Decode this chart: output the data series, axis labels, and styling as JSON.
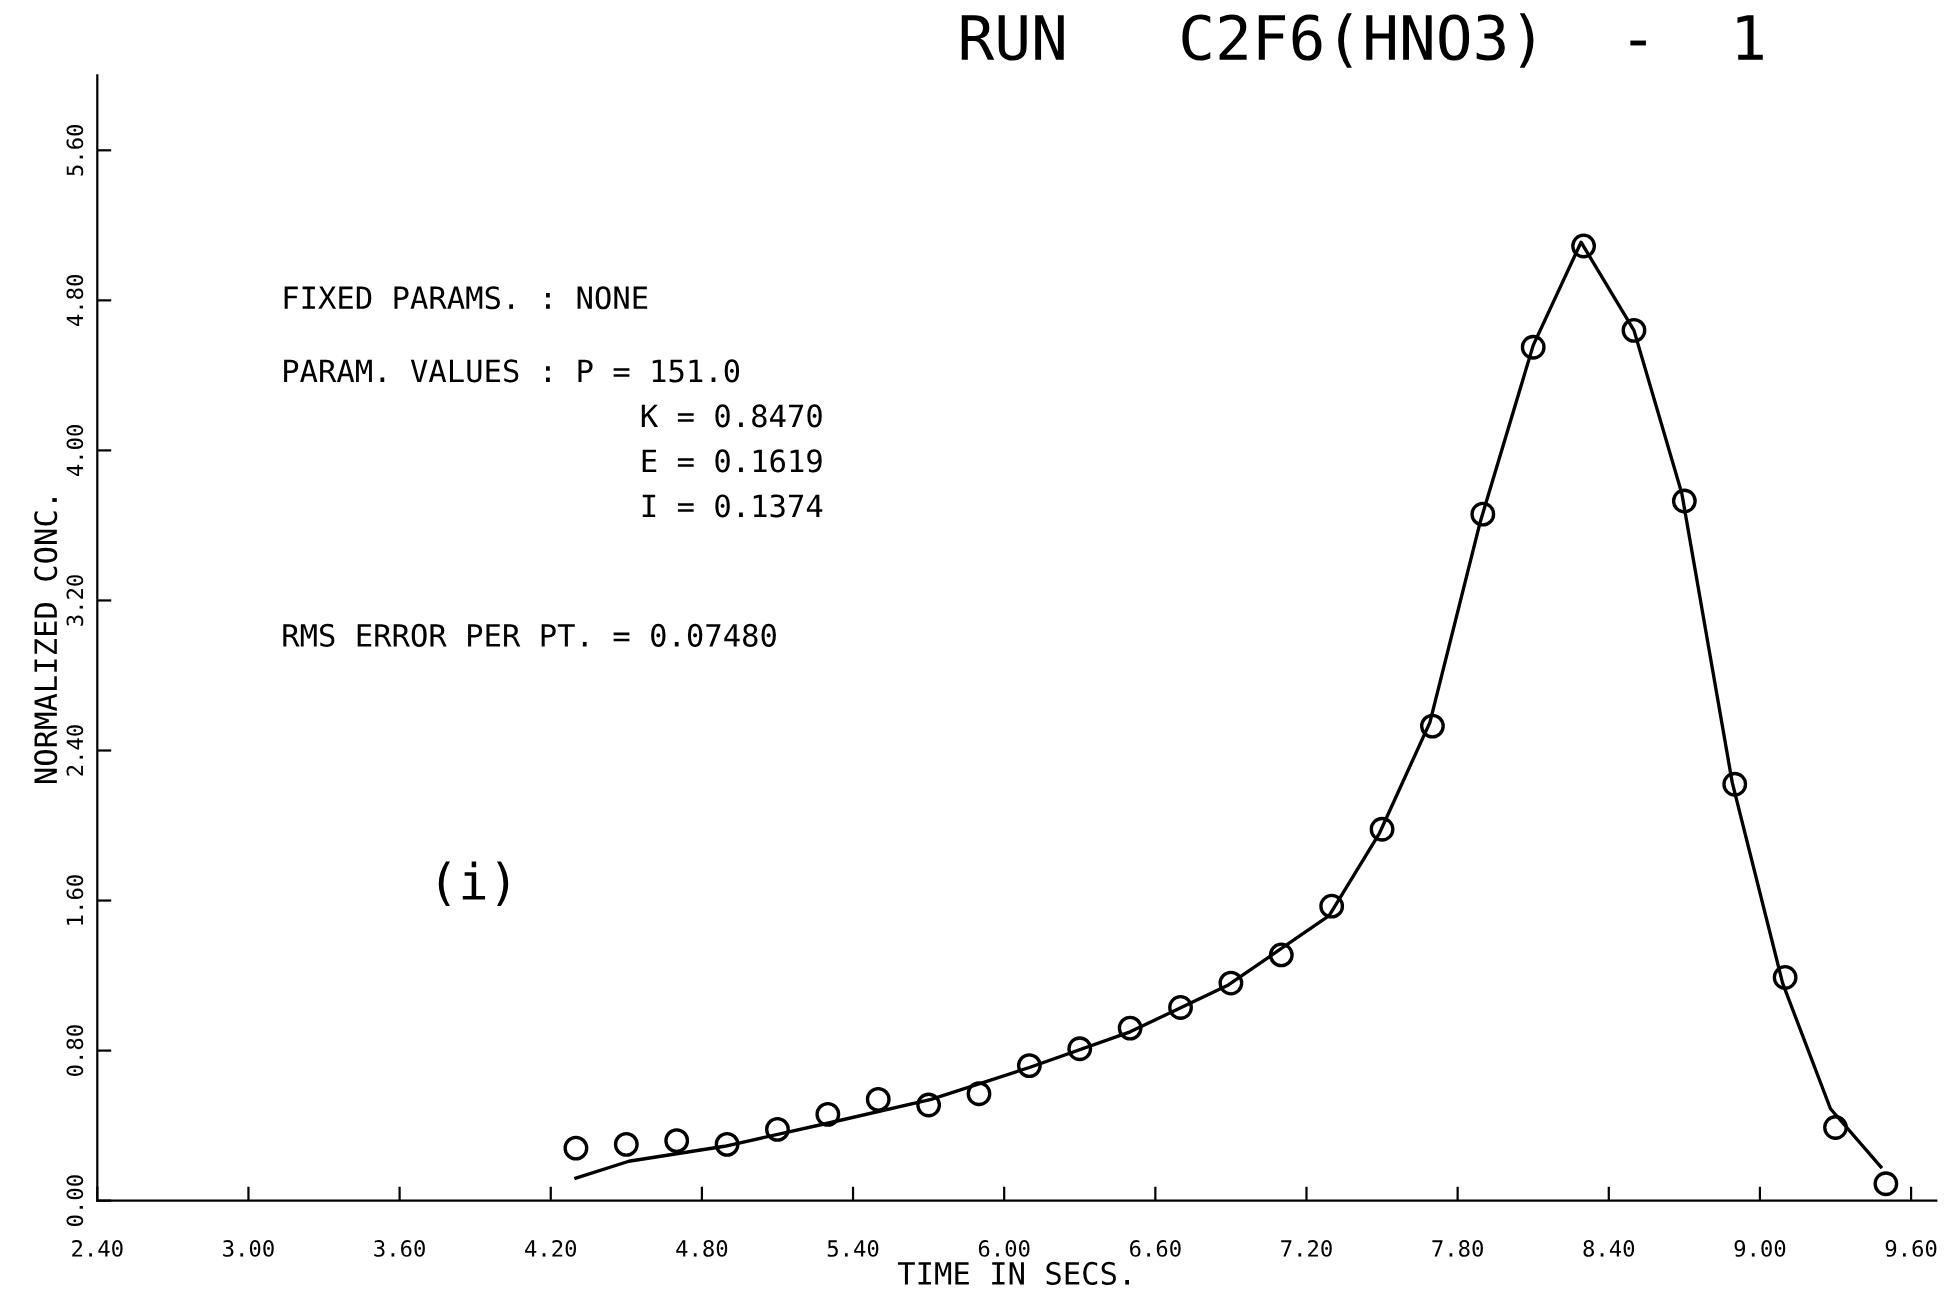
{
  "chart_data": {
    "type": "scatter",
    "title": "RUN   C2F6(HNO3)  -  1",
    "xlabel": "TIME IN SECS.",
    "ylabel": "NORMALIZED CONC.",
    "annotations": [
      "FIXED PARAMS. : NONE",
      "PARAM. VALUES : P = 151.0",
      "K = 0.8470",
      "E = 0.1619",
      "I = 0.1374",
      "RMS ERROR PER PT. = 0.07480",
      "(i)"
    ],
    "xlim": [
      2.4,
      9.7
    ],
    "xticks": [
      {
        "value": 2.4,
        "label": "2.40"
      },
      {
        "value": 3.0,
        "label": "3.00"
      },
      {
        "value": 3.6,
        "label": "3.60"
      },
      {
        "value": 4.2,
        "label": "4.20"
      },
      {
        "value": 4.8,
        "label": "4.80"
      },
      {
        "value": 5.4,
        "label": "5.40"
      },
      {
        "value": 6.0,
        "label": "6.00"
      },
      {
        "value": 6.6,
        "label": "6.60"
      },
      {
        "value": 7.2,
        "label": "7.20"
      },
      {
        "value": 7.8,
        "label": "7.80"
      },
      {
        "value": 8.4,
        "label": "8.40"
      },
      {
        "value": 9.0,
        "label": "9.00"
      },
      {
        "value": 9.6,
        "label": "9.60"
      }
    ],
    "ylim": [
      0,
      6.0
    ],
    "yticks": [
      {
        "value": 0,
        "label": "0.00"
      },
      {
        "value": 0.8,
        "label": "0.80"
      },
      {
        "value": 1.6,
        "label": "1.60"
      },
      {
        "value": 2.4,
        "label": "2.40"
      },
      {
        "value": 3.2,
        "label": "3.20"
      },
      {
        "value": 4.0,
        "label": "4.00"
      },
      {
        "value": 4.8,
        "label": "4.80"
      },
      {
        "value": 5.6,
        "label": "5.60"
      }
    ],
    "grid": false,
    "legend": false,
    "series": [
      {
        "marker": "circle",
        "color": "#000000",
        "x": [
          4.3,
          4.5,
          4.7,
          4.9,
          5.1,
          5.3,
          5.5,
          5.7,
          5.9,
          6.1,
          6.3,
          6.5,
          6.7,
          6.9,
          7.1,
          7.3,
          7.5,
          7.7,
          7.9,
          8.1,
          8.3,
          8.5,
          8.7,
          8.9,
          9.1,
          9.3,
          9.5
        ],
        "values": [
          0.28,
          0.3,
          0.32,
          0.3,
          0.38,
          0.46,
          0.54,
          0.51,
          0.57,
          0.72,
          0.81,
          0.92,
          1.03,
          1.16,
          1.31,
          1.57,
          1.98,
          2.53,
          3.66,
          4.55,
          5.09,
          4.64,
          3.73,
          2.22,
          1.19,
          0.39,
          0.09
        ]
      },
      {
        "type": "line",
        "marker": "none",
        "line_style": "solid",
        "color": "#000000",
        "x": [
          4.3,
          4.51,
          4.89,
          5.29,
          5.71,
          6.1,
          6.5,
          6.89,
          7.29,
          7.49,
          7.69,
          7.89,
          8.1,
          8.29,
          8.5,
          8.69,
          8.89,
          9.09,
          9.28,
          9.48
        ],
        "values": [
          0.12,
          0.21,
          0.29,
          0.41,
          0.54,
          0.71,
          0.9,
          1.15,
          1.52,
          1.96,
          2.55,
          3.62,
          4.56,
          5.11,
          4.64,
          3.77,
          2.23,
          1.16,
          0.49,
          0.18
        ]
      }
    ]
  }
}
